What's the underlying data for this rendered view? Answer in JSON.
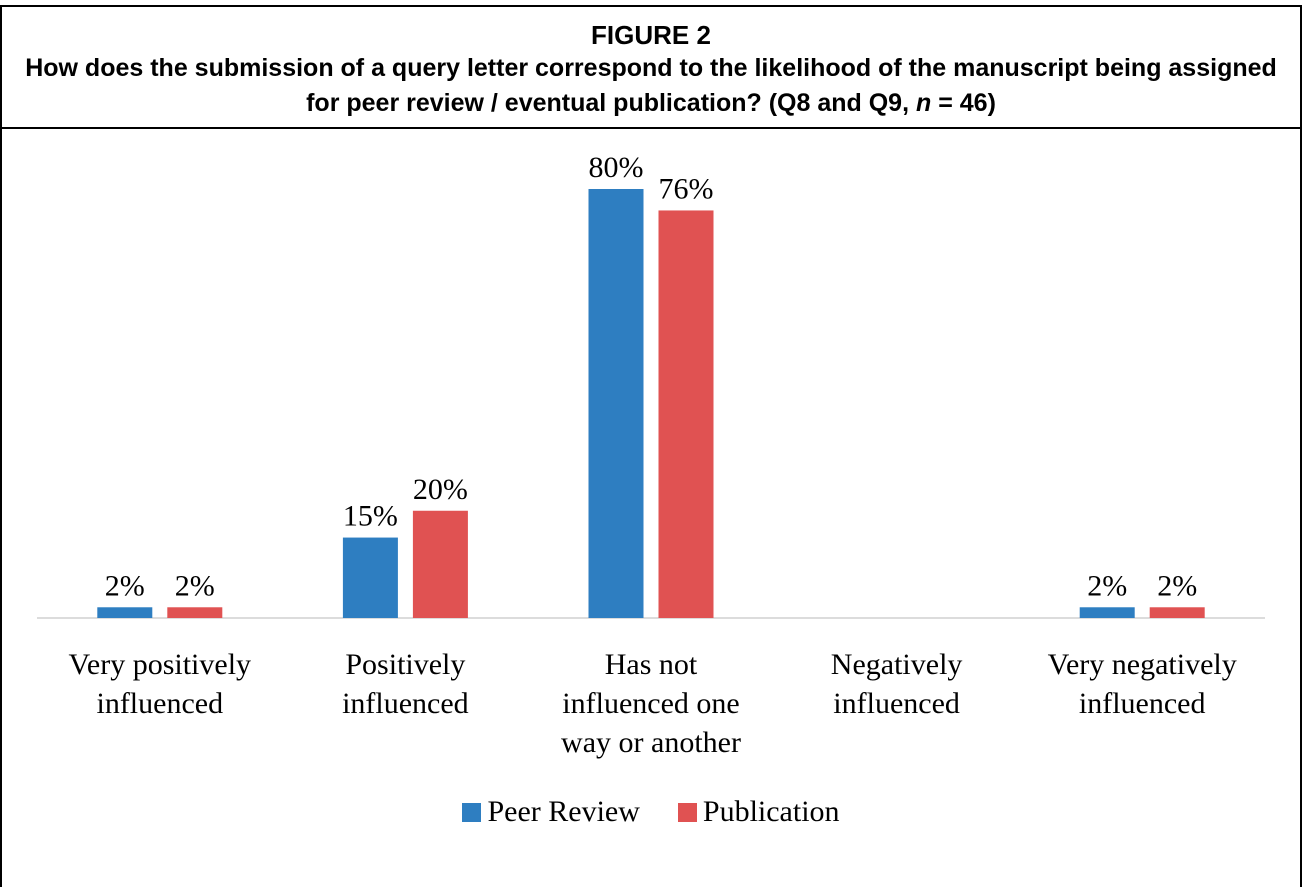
{
  "chart_data": {
    "type": "bar",
    "title": "FIGURE 2",
    "subtitle": [
      "How does the submission of a query letter correspond to the likelihood of the manuscript being assigned for peer review / eventual publication? (Q8 and Q9, ",
      "n",
      " = 46)"
    ],
    "categories": [
      "Very positively influenced",
      "Positively influenced",
      "Has not influenced one way or another",
      "Negatively influenced",
      "Very negatively influenced"
    ],
    "series": [
      {
        "name": "Peer Review",
        "color": "#2e7ec1",
        "values": [
          2,
          15,
          80,
          null,
          2
        ],
        "value_labels": [
          "2%",
          "15%",
          "80%",
          null,
          "2%"
        ]
      },
      {
        "name": "Publication",
        "color": "#e05252",
        "values": [
          2,
          20,
          76,
          null,
          2
        ],
        "value_labels": [
          "2%",
          "20%",
          "76%",
          null,
          "2%"
        ]
      }
    ],
    "legend": "bottom"
  }
}
